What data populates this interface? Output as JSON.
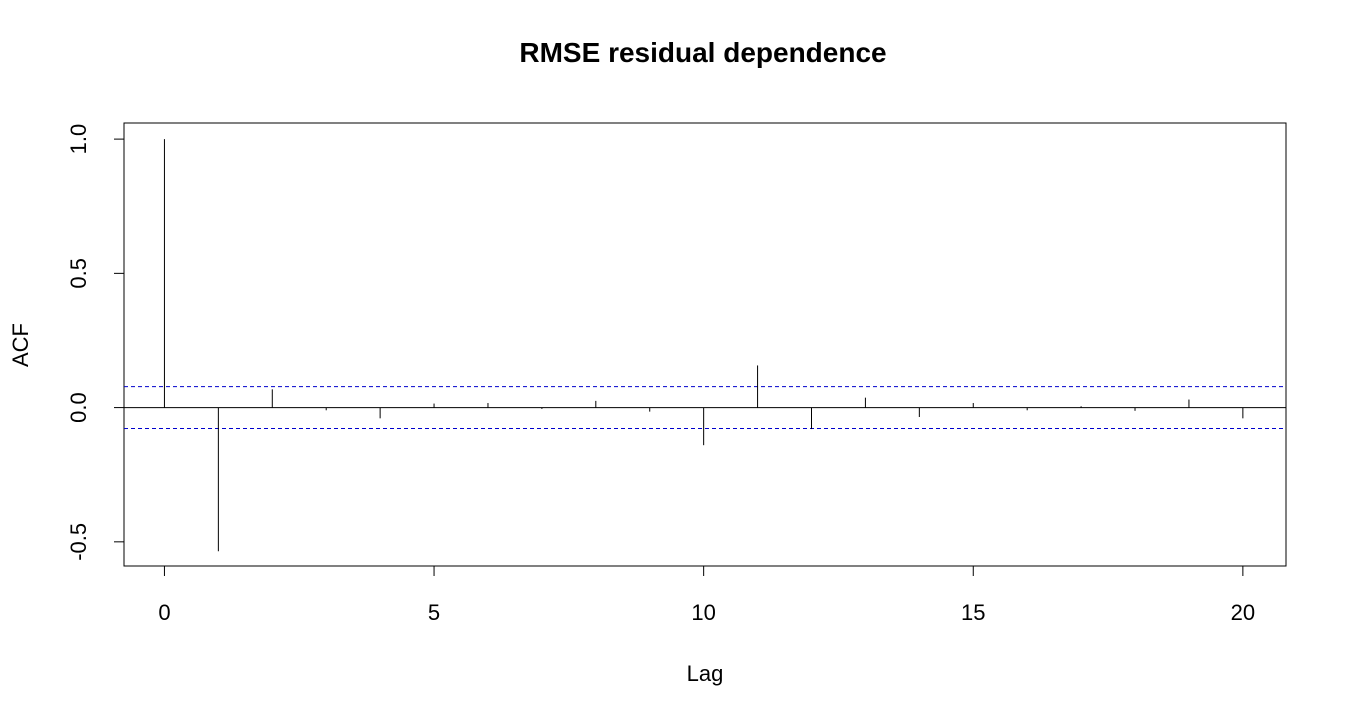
{
  "chart_data": {
    "type": "bar",
    "title": "RMSE residual dependence",
    "xlabel": "Lag",
    "ylabel": "ACF",
    "x": [
      0,
      1,
      2,
      3,
      4,
      5,
      6,
      7,
      8,
      9,
      10,
      11,
      12,
      13,
      14,
      15,
      16,
      17,
      18,
      19,
      20
    ],
    "values": [
      1.0,
      -0.535,
      0.068,
      -0.01,
      -0.04,
      0.015,
      0.017,
      -0.005,
      0.025,
      -0.015,
      -0.14,
      0.157,
      -0.08,
      0.037,
      -0.035,
      0.017,
      -0.01,
      0.005,
      -0.012,
      0.03,
      -0.04
    ],
    "confidence_band": [
      0.078,
      -0.078
    ],
    "xlim": [
      -0.75,
      20.8
    ],
    "ylim": [
      -0.59,
      1.06
    ],
    "x_ticks": [
      "0",
      "5",
      "10",
      "15",
      "20"
    ],
    "y_ticks": [
      "-0.5",
      "0.0",
      "0.5",
      "1.0"
    ],
    "colors": {
      "bars": "#000000",
      "band": "#0000cc",
      "zero_line": "#000000"
    }
  }
}
